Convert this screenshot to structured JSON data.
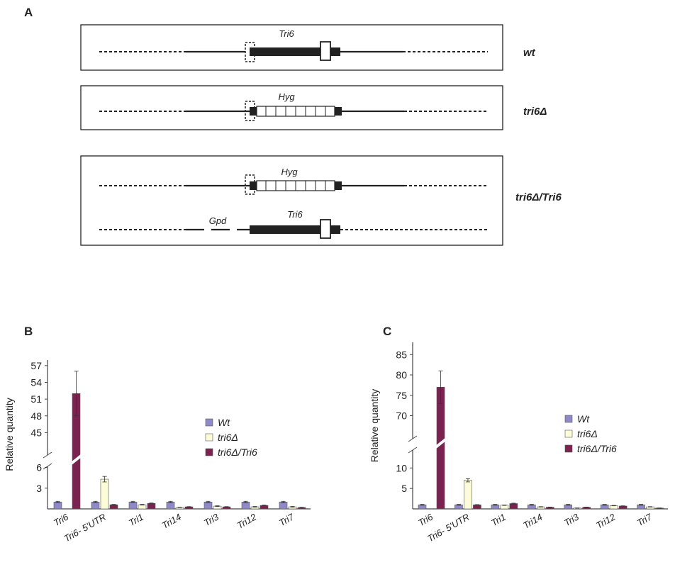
{
  "panel_a": {
    "letter": "A",
    "strains": [
      "wt",
      "tri6Δ",
      "tri6Δ/Tri6"
    ],
    "genes": {
      "tri6": "Tri6",
      "hyg": "Hyg",
      "gpd": "Gpd"
    }
  },
  "panel_b": {
    "letter": "B"
  },
  "panel_c": {
    "letter": "C"
  },
  "chart_data": [
    {
      "type": "bar",
      "ylabel": "Relative quantity",
      "categories": [
        "Tri6",
        "Tri6- 5'UTR",
        "Tri1",
        "Tri14",
        "Tri3",
        "Tri12",
        "Tri7"
      ],
      "y_ticks_lower": [
        3,
        6
      ],
      "y_ticks_upper": [
        45,
        48,
        51,
        54,
        57
      ],
      "broken_axis": true,
      "series": [
        {
          "name": "Wt",
          "color": "#8f89c8",
          "values": [
            1.0,
            1.0,
            1.0,
            1.0,
            1.0,
            1.0,
            1.0
          ],
          "errors": [
            0.1,
            0.1,
            0.1,
            0.1,
            0.1,
            0.1,
            0.1
          ]
        },
        {
          "name": "tri6Δ",
          "color": "#fdfcd8",
          "values": [
            0,
            4.3,
            0.6,
            0.2,
            0.4,
            0.3,
            0.3
          ],
          "errors": [
            0,
            0.4,
            0.05,
            0.03,
            0.05,
            0.05,
            0.05
          ]
        },
        {
          "name": "tri6Δ/Tri6",
          "color": "#7a2350",
          "values": [
            52.0,
            0.6,
            0.8,
            0.3,
            0.3,
            0.5,
            0.2
          ],
          "errors": [
            4.0,
            0.05,
            0.05,
            0.03,
            0.03,
            0.05,
            0.03
          ]
        }
      ],
      "legend": "right"
    },
    {
      "type": "bar",
      "ylabel": "Relative quantity",
      "categories": [
        "Tri6",
        "Tri6- 5'UTR",
        "Tri1",
        "Tri14",
        "Tri3",
        "Tri12",
        "Tri7"
      ],
      "y_ticks_lower": [
        5,
        10
      ],
      "y_ticks_upper": [
        70,
        75,
        80,
        85
      ],
      "broken_axis": true,
      "series": [
        {
          "name": "Wt",
          "color": "#8f89c8",
          "values": [
            1.0,
            1.0,
            1.0,
            1.0,
            1.0,
            1.0,
            1.0
          ],
          "errors": [
            0.1,
            0.1,
            0.1,
            0.1,
            0.1,
            0.1,
            0.1
          ]
        },
        {
          "name": "tri6Δ",
          "color": "#fdfcd8",
          "values": [
            0,
            7.0,
            0.9,
            0.5,
            0.2,
            0.8,
            0.5
          ],
          "errors": [
            0,
            0.4,
            0.05,
            0.05,
            0.03,
            0.05,
            0.05
          ]
        },
        {
          "name": "tri6Δ/Tri6",
          "color": "#7a2350",
          "values": [
            77.0,
            1.0,
            1.3,
            0.4,
            0.4,
            0.7,
            0.2
          ],
          "errors": [
            4.0,
            0.05,
            0.1,
            0.05,
            0.05,
            0.05,
            0.03
          ]
        }
      ],
      "legend": "right"
    }
  ]
}
